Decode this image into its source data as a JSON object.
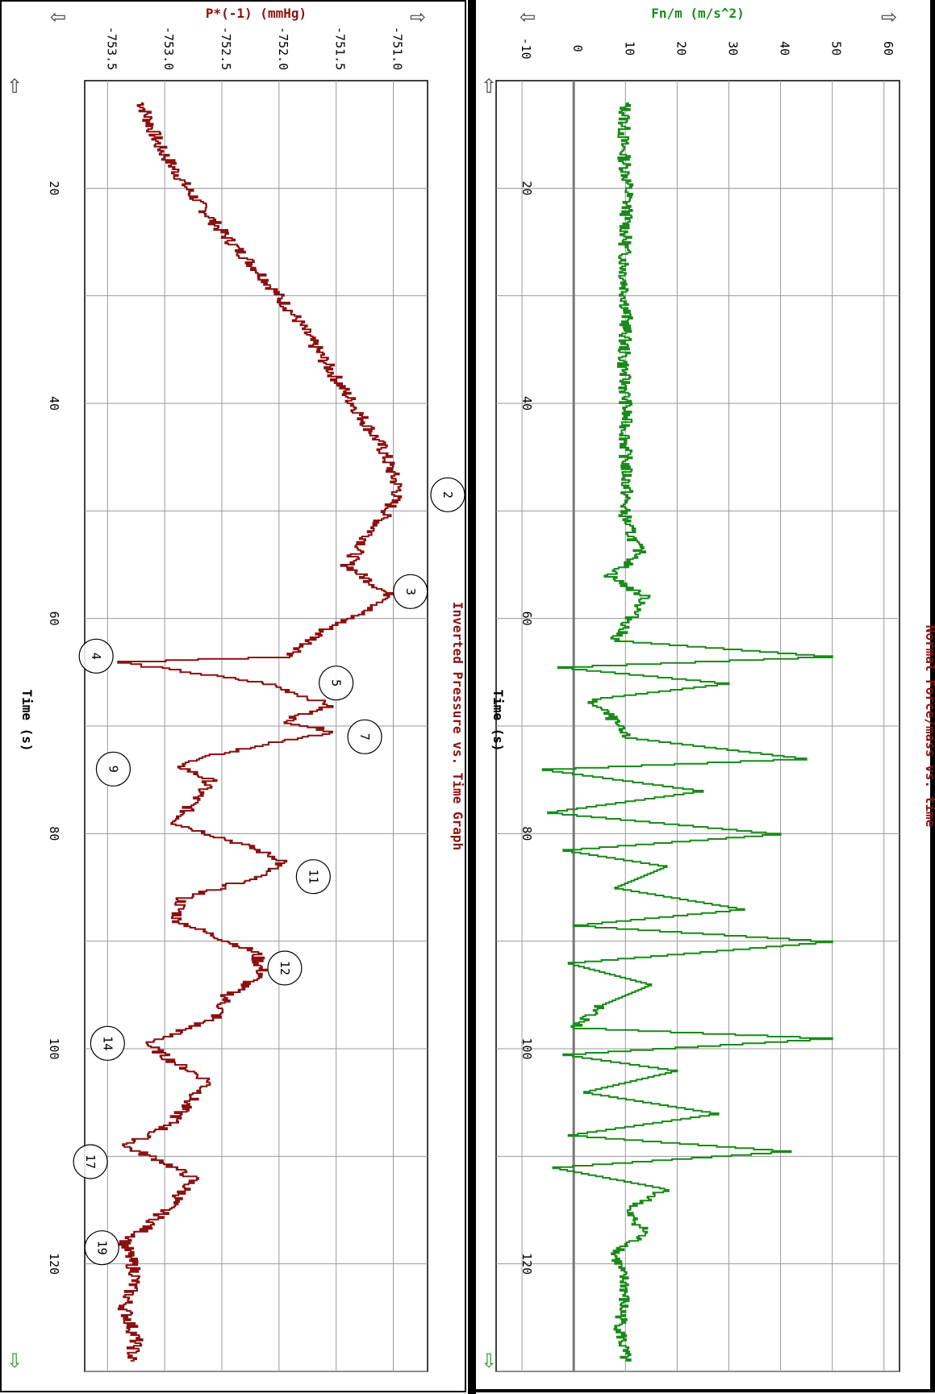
{
  "chart_data": [
    {
      "type": "line",
      "title": "Inverted Pressure vs. Time Graph",
      "xlabel": "Time (s)",
      "ylabel": "P*(-1) (mmHg)",
      "xlim": [
        10,
        130
      ],
      "ylim": [
        -753.7,
        -750.7
      ],
      "x_ticks": [
        20,
        40,
        60,
        80,
        100,
        120
      ],
      "x_tick_labels": [
        "20",
        "40",
        "60",
        "80",
        "100",
        "120"
      ],
      "y_ticks": [
        -753.5,
        -753.0,
        -752.5,
        -752.0,
        -751.5,
        -751.0
      ],
      "y_tick_labels": [
        "-753.5",
        "-753.0",
        "-752.5",
        "-752.0",
        "-751.5",
        "-751.0"
      ],
      "grid": true,
      "color": "#8b1010",
      "series": [
        {
          "x": [
            12,
            16,
            20,
            24,
            28,
            32,
            36,
            40,
            44,
            48,
            50,
            52,
            55,
            58,
            61,
            63.5,
            64,
            66,
            68,
            69.5,
            70.5,
            72,
            73.5,
            75,
            77,
            79,
            81,
            82.5,
            84,
            86,
            88,
            91,
            93,
            95,
            97,
            99.5,
            101,
            103,
            105,
            107,
            109,
            110.5,
            112,
            114,
            116.5,
            118,
            121,
            124,
            127,
            129
          ],
          "y": [
            -753.2,
            -753.05,
            -752.8,
            -752.5,
            -752.15,
            -751.85,
            -751.6,
            -751.35,
            -751.1,
            -750.95,
            -751.05,
            -751.2,
            -751.4,
            -751.0,
            -751.6,
            -751.9,
            -753.4,
            -752.1,
            -751.55,
            -751.95,
            -751.5,
            -752.3,
            -752.9,
            -752.6,
            -752.75,
            -752.9,
            -752.3,
            -751.95,
            -752.2,
            -752.85,
            -752.9,
            -752.2,
            -752.15,
            -752.45,
            -752.55,
            -753.15,
            -752.95,
            -752.6,
            -752.8,
            -752.95,
            -753.35,
            -753.0,
            -752.75,
            -752.9,
            -753.15,
            -753.35,
            -753.25,
            -753.35,
            -753.25,
            -753.3
          ]
        }
      ],
      "annotations": [
        {
          "label": "2",
          "x": 48.5,
          "y": -750.2
        },
        {
          "label": "3",
          "x": 57.5,
          "y": -750.85
        },
        {
          "label": "4",
          "x": 63.5,
          "y": -753.6
        },
        {
          "label": "5",
          "x": 66,
          "y": -751.5
        },
        {
          "label": "7",
          "x": 71,
          "y": -751.25
        },
        {
          "label": "9",
          "x": 74,
          "y": -753.45
        },
        {
          "label": "11",
          "x": 84,
          "y": -751.7
        },
        {
          "label": "12",
          "x": 92.5,
          "y": -751.95
        },
        {
          "label": "14",
          "x": 99.5,
          "y": -753.5
        },
        {
          "label": "17",
          "x": 110.5,
          "y": -753.65
        },
        {
          "label": "19",
          "x": 118.5,
          "y": -753.55
        }
      ]
    },
    {
      "type": "line",
      "title": "Normal Force/mass vs. time",
      "xlabel": "Time (s)",
      "ylabel": "Fn/m (m/s^2)",
      "xlim": [
        10,
        130
      ],
      "ylim": [
        -15,
        63
      ],
      "x_ticks": [
        20,
        40,
        60,
        80,
        100,
        120
      ],
      "x_tick_labels": [
        "20",
        "40",
        "60",
        "80",
        "100",
        "120"
      ],
      "y_ticks": [
        -10,
        0,
        10,
        20,
        30,
        40,
        50,
        60
      ],
      "y_tick_labels": [
        "-10",
        "0",
        "10",
        "20",
        "30",
        "40",
        "50",
        "60"
      ],
      "grid": true,
      "color": "#1a8a1a",
      "series": [
        {
          "x": [
            12,
            16,
            20,
            24,
            28,
            32,
            36,
            40,
            44,
            48,
            50,
            52,
            54,
            56,
            58,
            60,
            62,
            63.5,
            64.5,
            66,
            67.5,
            69,
            71,
            73,
            74,
            76,
            78,
            80,
            81.5,
            83,
            85,
            87,
            88.5,
            90,
            92,
            94,
            96,
            98,
            99,
            100.5,
            102,
            104,
            106,
            108,
            109.5,
            111,
            113,
            115,
            117,
            119,
            122,
            126,
            129
          ],
          "y": [
            10,
            9.5,
            10.5,
            10,
            9.8,
            10.2,
            9.6,
            10.1,
            10,
            10.3,
            9.7,
            11,
            13,
            7,
            14,
            11,
            8,
            50,
            -3,
            30,
            3,
            7,
            10,
            45,
            -6,
            25,
            -5,
            40,
            -2,
            18,
            8,
            33,
            0,
            50,
            -1,
            15,
            5,
            0,
            50,
            -2,
            20,
            2,
            28,
            -1,
            42,
            -4,
            18,
            10,
            14,
            8,
            10,
            9,
            10
          ]
        }
      ]
    }
  ]
}
